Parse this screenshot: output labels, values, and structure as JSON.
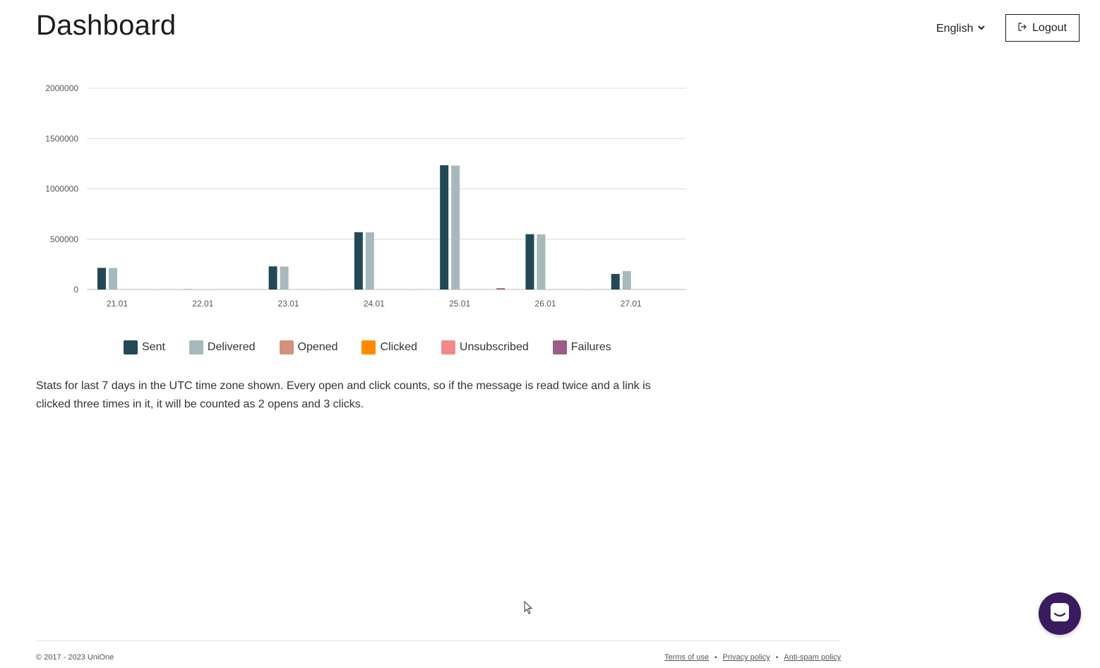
{
  "header": {
    "title": "Dashboard",
    "language": "English",
    "logout_label": "Logout"
  },
  "chart_data": {
    "type": "bar",
    "categories": [
      "21.01",
      "22.01",
      "23.01",
      "24.01",
      "25.01",
      "26.01",
      "27.01"
    ],
    "ylim": [
      0,
      2000000
    ],
    "yticks": [
      0,
      500000,
      1000000,
      1500000,
      2000000
    ],
    "grid": true,
    "legend_position": "bottom",
    "series": [
      {
        "name": "Sent",
        "color": "#244856",
        "values": [
          215000,
          2000,
          230000,
          570000,
          1235000,
          550000,
          155000
        ]
      },
      {
        "name": "Delivered",
        "color": "#a6b9bd",
        "values": [
          213000,
          2000,
          228000,
          568000,
          1232000,
          548000,
          183000
        ]
      },
      {
        "name": "Opened",
        "color": "#d4917e",
        "values": [
          0,
          1500,
          0,
          0,
          0,
          0,
          0
        ]
      },
      {
        "name": "Clicked",
        "color": "#ff8a00",
        "values": [
          0,
          0,
          0,
          0,
          0,
          0,
          0
        ]
      },
      {
        "name": "Unsubscribed",
        "color": "#f28a8c",
        "values": [
          0,
          0,
          0,
          0,
          0,
          0,
          0
        ]
      },
      {
        "name": "Failures",
        "color": "#9b5e86",
        "values": [
          500,
          0,
          1000,
          500,
          13000,
          500,
          0
        ]
      }
    ]
  },
  "note": "Stats for last 7 days in the UTC time zone shown. Every open and click counts, so if the message is read twice and a link is clicked three times in it, it will be counted as 2 opens and 3 clicks.",
  "footer": {
    "copyright": "© 2017 - 2023 UniOne",
    "links": [
      "Terms of use",
      "Privacy policy",
      "Anti-spam policy"
    ],
    "separator": "•"
  },
  "icons": {
    "chevron": "chevron-down-icon",
    "logout": "logout-icon",
    "chat": "chat-icon"
  }
}
